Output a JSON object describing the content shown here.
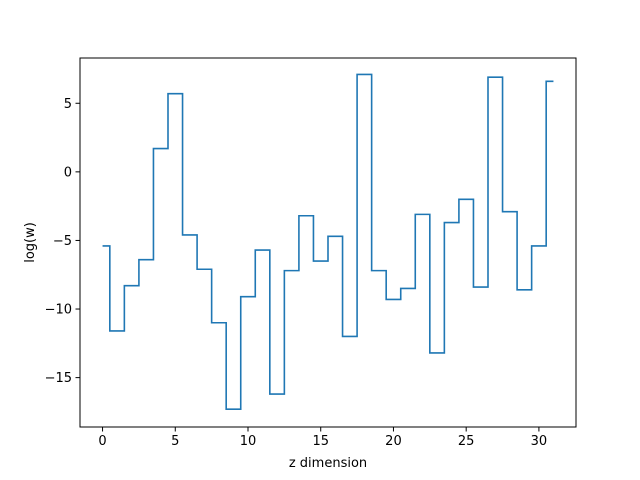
{
  "chart_data": {
    "type": "line",
    "drawstyle": "steps-mid",
    "title": "",
    "xlabel": "z dimension",
    "ylabel": "log(w)",
    "xlim": [
      -1.55,
      32.55
    ],
    "ylim": [
      -18.6,
      8.3
    ],
    "xticks": [
      0,
      5,
      10,
      15,
      20,
      25,
      30
    ],
    "yticks": [
      -15,
      -10,
      -5,
      0,
      5
    ],
    "ytick_labels": [
      "−15",
      "−10",
      "−5",
      "0",
      "5"
    ],
    "grid": false,
    "series_color": "#1f77b4",
    "series": [
      {
        "x": [
          0,
          1,
          2,
          3,
          4,
          5,
          6,
          7,
          8,
          9,
          10,
          11,
          12,
          13,
          14,
          15,
          16,
          17,
          18,
          19,
          20,
          21,
          22,
          23,
          24,
          25,
          26,
          27,
          28,
          29,
          30,
          31
        ],
        "values": [
          -5.4,
          -11.6,
          -8.3,
          -6.4,
          1.7,
          5.7,
          -4.6,
          -7.1,
          -11.0,
          -17.3,
          -9.1,
          -5.7,
          -16.2,
          -7.2,
          -3.2,
          -6.5,
          -4.7,
          -12.0,
          7.1,
          -7.2,
          -9.3,
          -8.5,
          -3.1,
          -13.2,
          -3.7,
          -2.0,
          -8.4,
          6.9,
          -2.9,
          -8.6,
          -5.4,
          6.6
        ]
      }
    ]
  }
}
